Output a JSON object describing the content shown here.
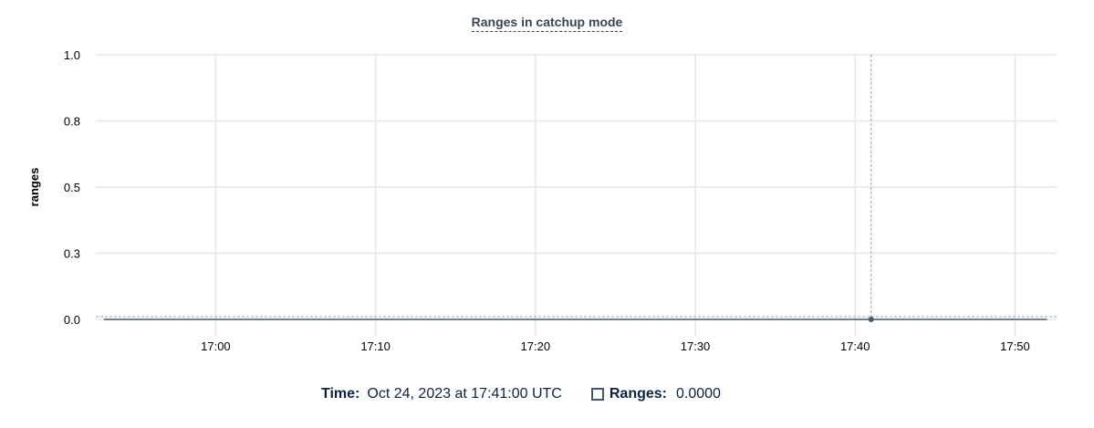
{
  "chart_data": {
    "type": "line",
    "title": "Ranges in catchup mode",
    "ylabel": "ranges",
    "xlabel": "",
    "ylim": [
      0,
      1
    ],
    "xlim": [
      "16:52:30",
      "17:52:36"
    ],
    "y_ticks": [
      {
        "value": 0,
        "label": "0.0"
      },
      {
        "value": 0.25,
        "label": "0.3"
      },
      {
        "value": 0.5,
        "label": "0.5"
      },
      {
        "value": 0.75,
        "label": "0.8"
      },
      {
        "value": 1,
        "label": "1.0"
      }
    ],
    "x_ticks": [
      "17:00",
      "17:10",
      "17:20",
      "17:30",
      "17:40",
      "17:50"
    ],
    "grid": true,
    "series": [
      {
        "name": "Ranges",
        "color": "#475872",
        "x": [
          "16:53",
          "16:58",
          "17:03",
          "17:08",
          "17:13",
          "17:18",
          "17:23",
          "17:28",
          "17:33",
          "17:38",
          "17:41",
          "17:46",
          "17:52"
        ],
        "values": [
          0,
          0,
          0,
          0,
          0,
          0,
          0,
          0,
          0,
          0,
          0,
          0,
          0
        ]
      }
    ],
    "cursor": {
      "x": "17:41",
      "value": 0
    }
  },
  "tooltip": {
    "time_label": "Time:",
    "time_value": "Oct 24, 2023 at 17:41:00 UTC",
    "series_label": "Ranges:",
    "series_value": "0.0000"
  }
}
